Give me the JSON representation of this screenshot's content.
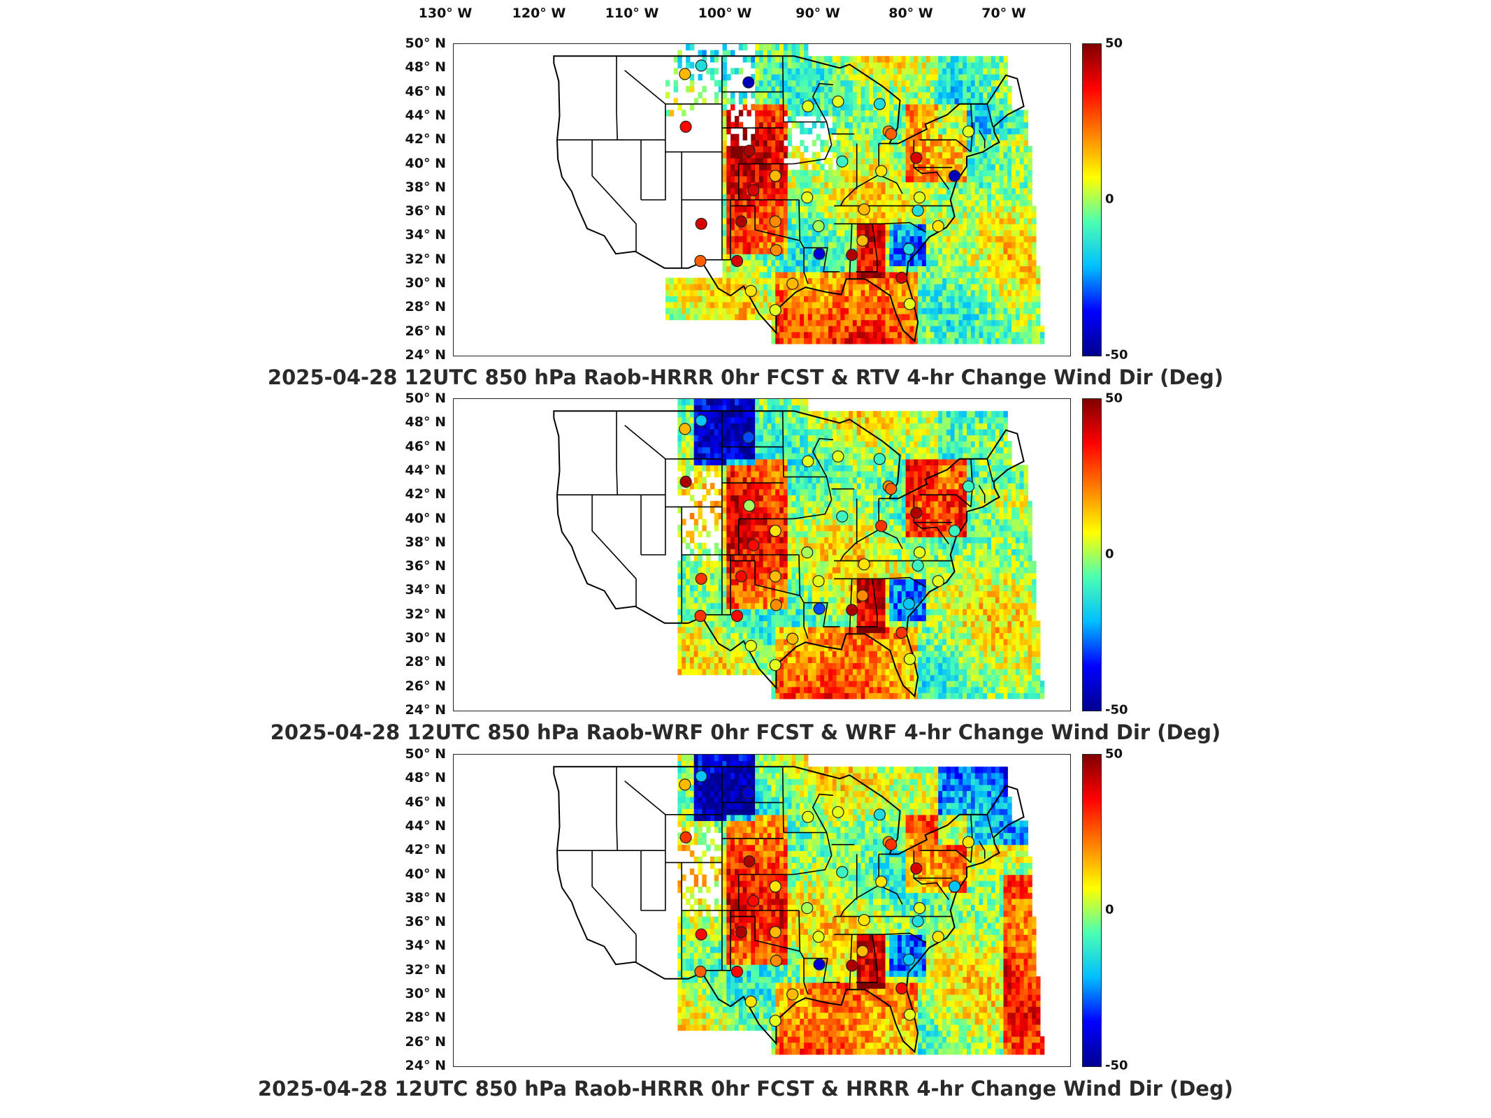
{
  "lon_labels": [
    "130° W",
    "120° W",
    "110° W",
    "100° W",
    "90° W",
    "80° W",
    "70° W"
  ],
  "lat_labels": [
    "50° N",
    "48° N",
    "46° N",
    "44° N",
    "42° N",
    "40° N",
    "38° N",
    "36° N",
    "34° N",
    "32° N",
    "30° N",
    "28° N",
    "26° N",
    "24° N"
  ],
  "colorbar": {
    "max_label": "50",
    "mid_label": "0",
    "min_label": "-50",
    "colors": [
      "#00008f",
      "#0000ff",
      "#00bfff",
      "#4cffb2",
      "#ffff00",
      "#ff7f00",
      "#ff0000",
      "#800000"
    ]
  },
  "panels": [
    {
      "title": "2025-04-28 12UTC 850 hPa Raob-HRRR 0hr FCST & RTV 4-hr Change Wind Dir (Deg)"
    },
    {
      "title": "2025-04-28 12UTC 850 hPa Raob-WRF 0hr FCST & WRF 4-hr Change Wind Dir (Deg)"
    },
    {
      "title": "2025-04-28 12UTC 850 hPa Raob-HRRR 0hr FCST & HRRR 4-hr Change Wind Dir (Deg)"
    }
  ],
  "stations": [
    {
      "lon": -108.6,
      "lat": 47.5,
      "v": [
        15,
        15,
        15
      ]
    },
    {
      "lon": -106.6,
      "lat": 48.2,
      "v": [
        -15,
        -20,
        -20
      ]
    },
    {
      "lon": -100.8,
      "lat": 46.8,
      "v": [
        -45,
        -30,
        -40
      ]
    },
    {
      "lon": -108.5,
      "lat": 43.1,
      "v": [
        35,
        45,
        30
      ]
    },
    {
      "lon": -100.7,
      "lat": 41.1,
      "v": [
        45,
        0,
        45
      ]
    },
    {
      "lon": -100.2,
      "lat": 37.8,
      "v": [
        40,
        35,
        35
      ]
    },
    {
      "lon": -97.5,
      "lat": 39.0,
      "v": [
        15,
        10,
        10
      ]
    },
    {
      "lon": -93.5,
      "lat": 44.8,
      "v": [
        5,
        5,
        5
      ]
    },
    {
      "lon": -89.3,
      "lat": 40.2,
      "v": [
        -10,
        -10,
        -10
      ]
    },
    {
      "lon": -93.6,
      "lat": 37.2,
      "v": [
        5,
        0,
        0
      ]
    },
    {
      "lon": -92.2,
      "lat": 34.8,
      "v": [
        0,
        5,
        5
      ]
    },
    {
      "lon": -97.5,
      "lat": 35.2,
      "v": [
        20,
        15,
        15
      ]
    },
    {
      "lon": -106.6,
      "lat": 35.0,
      "v": [
        40,
        30,
        35
      ]
    },
    {
      "lon": -101.7,
      "lat": 35.2,
      "v": [
        45,
        35,
        45
      ]
    },
    {
      "lon": -102.2,
      "lat": 31.9,
      "v": [
        40,
        35,
        35
      ]
    },
    {
      "lon": -106.7,
      "lat": 31.9,
      "v": [
        25,
        30,
        25
      ]
    },
    {
      "lon": -97.4,
      "lat": 32.8,
      "v": [
        20,
        20,
        20
      ]
    },
    {
      "lon": -100.5,
      "lat": 29.4,
      "v": [
        10,
        5,
        10
      ]
    },
    {
      "lon": -97.5,
      "lat": 27.8,
      "v": [
        5,
        5,
        5
      ]
    },
    {
      "lon": -95.4,
      "lat": 30.0,
      "v": [
        15,
        15,
        15
      ]
    },
    {
      "lon": -92.1,
      "lat": 32.5,
      "v": [
        -40,
        -30,
        -40
      ]
    },
    {
      "lon": -88.1,
      "lat": 32.4,
      "v": [
        45,
        45,
        45
      ]
    },
    {
      "lon": -86.8,
      "lat": 33.6,
      "v": [
        15,
        20,
        15
      ]
    },
    {
      "lon": -86.6,
      "lat": 36.2,
      "v": [
        15,
        10,
        10
      ]
    },
    {
      "lon": -84.5,
      "lat": 39.4,
      "v": [
        10,
        30,
        10
      ]
    },
    {
      "lon": -83.6,
      "lat": 42.7,
      "v": [
        20,
        20,
        20
      ]
    },
    {
      "lon": -84.7,
      "lat": 45.0,
      "v": [
        -15,
        -10,
        -15
      ]
    },
    {
      "lon": -89.8,
      "lat": 45.2,
      "v": [
        5,
        5,
        5
      ]
    },
    {
      "lon": -80.2,
      "lat": 40.5,
      "v": [
        40,
        45,
        40
      ]
    },
    {
      "lon": -79.8,
      "lat": 37.2,
      "v": [
        5,
        5,
        5
      ]
    },
    {
      "lon": -80.0,
      "lat": 36.1,
      "v": [
        -15,
        -10,
        -15
      ]
    },
    {
      "lon": -77.5,
      "lat": 34.8,
      "v": [
        10,
        5,
        10
      ]
    },
    {
      "lon": -81.1,
      "lat": 32.9,
      "v": [
        -15,
        -20,
        -20
      ]
    },
    {
      "lon": -82.0,
      "lat": 30.5,
      "v": [
        40,
        30,
        35
      ]
    },
    {
      "lon": -81.0,
      "lat": 28.3,
      "v": [
        5,
        5,
        5
      ]
    },
    {
      "lon": -73.8,
      "lat": 42.7,
      "v": [
        5,
        -10,
        10
      ]
    },
    {
      "lon": -75.5,
      "lat": 39.0,
      "v": [
        -45,
        -10,
        -20
      ]
    },
    {
      "lon": -83.3,
      "lat": 42.5,
      "v": [
        25,
        25,
        30
      ]
    }
  ]
}
